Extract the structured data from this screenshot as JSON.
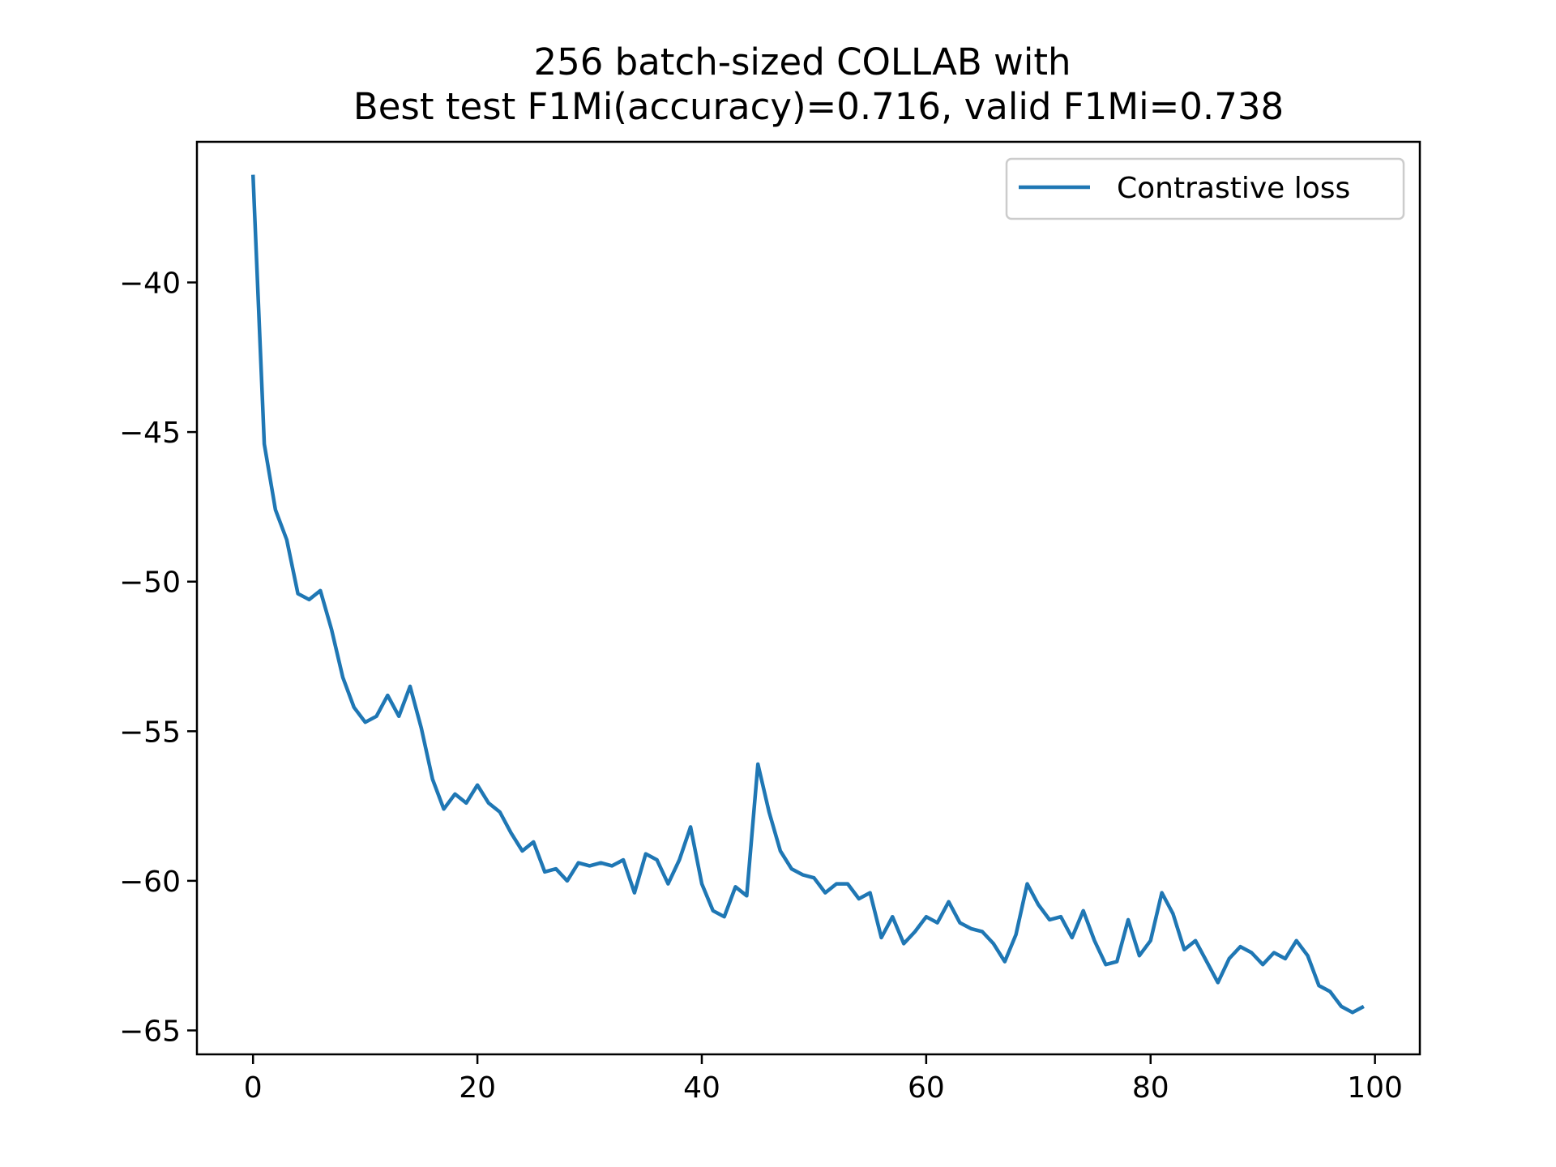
{
  "chart_data": {
    "type": "line",
    "title": "256 batch-sized COLLAB with",
    "subtitle": "Best test F1Mi(accuracy)=0.716, valid F1Mi=0.738",
    "xlabel": "",
    "ylabel": "",
    "xlim": [
      -5,
      104
    ],
    "ylim": [
      -65.8,
      -35.3
    ],
    "x_ticks": [
      0,
      20,
      40,
      60,
      80,
      100
    ],
    "y_ticks": [
      -40,
      -45,
      -50,
      -55,
      -60,
      -65
    ],
    "grid": false,
    "legend_position": "top-right",
    "colors": {
      "series": "#1f77b4",
      "axes": "#000000"
    },
    "series": [
      {
        "name": "Contrastive loss",
        "x": [
          0,
          1,
          2,
          3,
          4,
          5,
          6,
          7,
          8,
          9,
          10,
          11,
          12,
          13,
          14,
          15,
          16,
          17,
          18,
          19,
          20,
          21,
          22,
          23,
          24,
          25,
          26,
          27,
          28,
          29,
          30,
          31,
          32,
          33,
          34,
          35,
          36,
          37,
          38,
          39,
          40,
          41,
          42,
          43,
          44,
          45,
          46,
          47,
          48,
          49,
          50,
          51,
          52,
          53,
          54,
          55,
          56,
          57,
          58,
          59,
          60,
          61,
          62,
          63,
          64,
          65,
          66,
          67,
          68,
          69,
          70,
          71,
          72,
          73,
          74,
          75,
          76,
          77,
          78,
          79,
          80,
          81,
          82,
          83,
          84,
          85,
          86,
          87,
          88,
          89,
          90,
          91,
          92,
          93,
          94,
          95,
          96,
          97,
          98,
          99
        ],
        "values": [
          -36.4,
          -45.4,
          -47.6,
          -48.6,
          -50.4,
          -50.6,
          -50.3,
          -51.6,
          -53.2,
          -54.2,
          -54.7,
          -54.5,
          -53.8,
          -54.5,
          -53.5,
          -54.9,
          -56.6,
          -57.6,
          -57.1,
          -57.4,
          -56.8,
          -57.4,
          -57.7,
          -58.4,
          -59.0,
          -58.7,
          -59.7,
          -59.6,
          -60.0,
          -59.4,
          -59.5,
          -59.4,
          -59.5,
          -59.3,
          -60.4,
          -59.1,
          -59.3,
          -60.1,
          -59.3,
          -58.2,
          -60.1,
          -61.0,
          -61.2,
          -60.2,
          -60.5,
          -56.1,
          -57.7,
          -59.0,
          -59.6,
          -59.8,
          -59.9,
          -60.4,
          -60.1,
          -60.1,
          -60.6,
          -60.4,
          -61.9,
          -61.2,
          -62.1,
          -61.7,
          -61.2,
          -61.4,
          -60.7,
          -61.4,
          -61.6,
          -61.7,
          -62.1,
          -62.7,
          -61.8,
          -60.1,
          -60.8,
          -61.3,
          -61.2,
          -61.9,
          -61.0,
          -62.0,
          -62.8,
          -62.7,
          -61.3,
          -62.5,
          -62.0,
          -60.4,
          -61.1,
          -62.3,
          -62.0,
          -62.7,
          -63.4,
          -62.6,
          -62.2,
          -62.4,
          -62.8,
          -62.4,
          -62.6,
          -62.0,
          -62.5,
          -63.5,
          -63.7,
          -64.2,
          -64.4,
          -64.2
        ]
      }
    ]
  }
}
